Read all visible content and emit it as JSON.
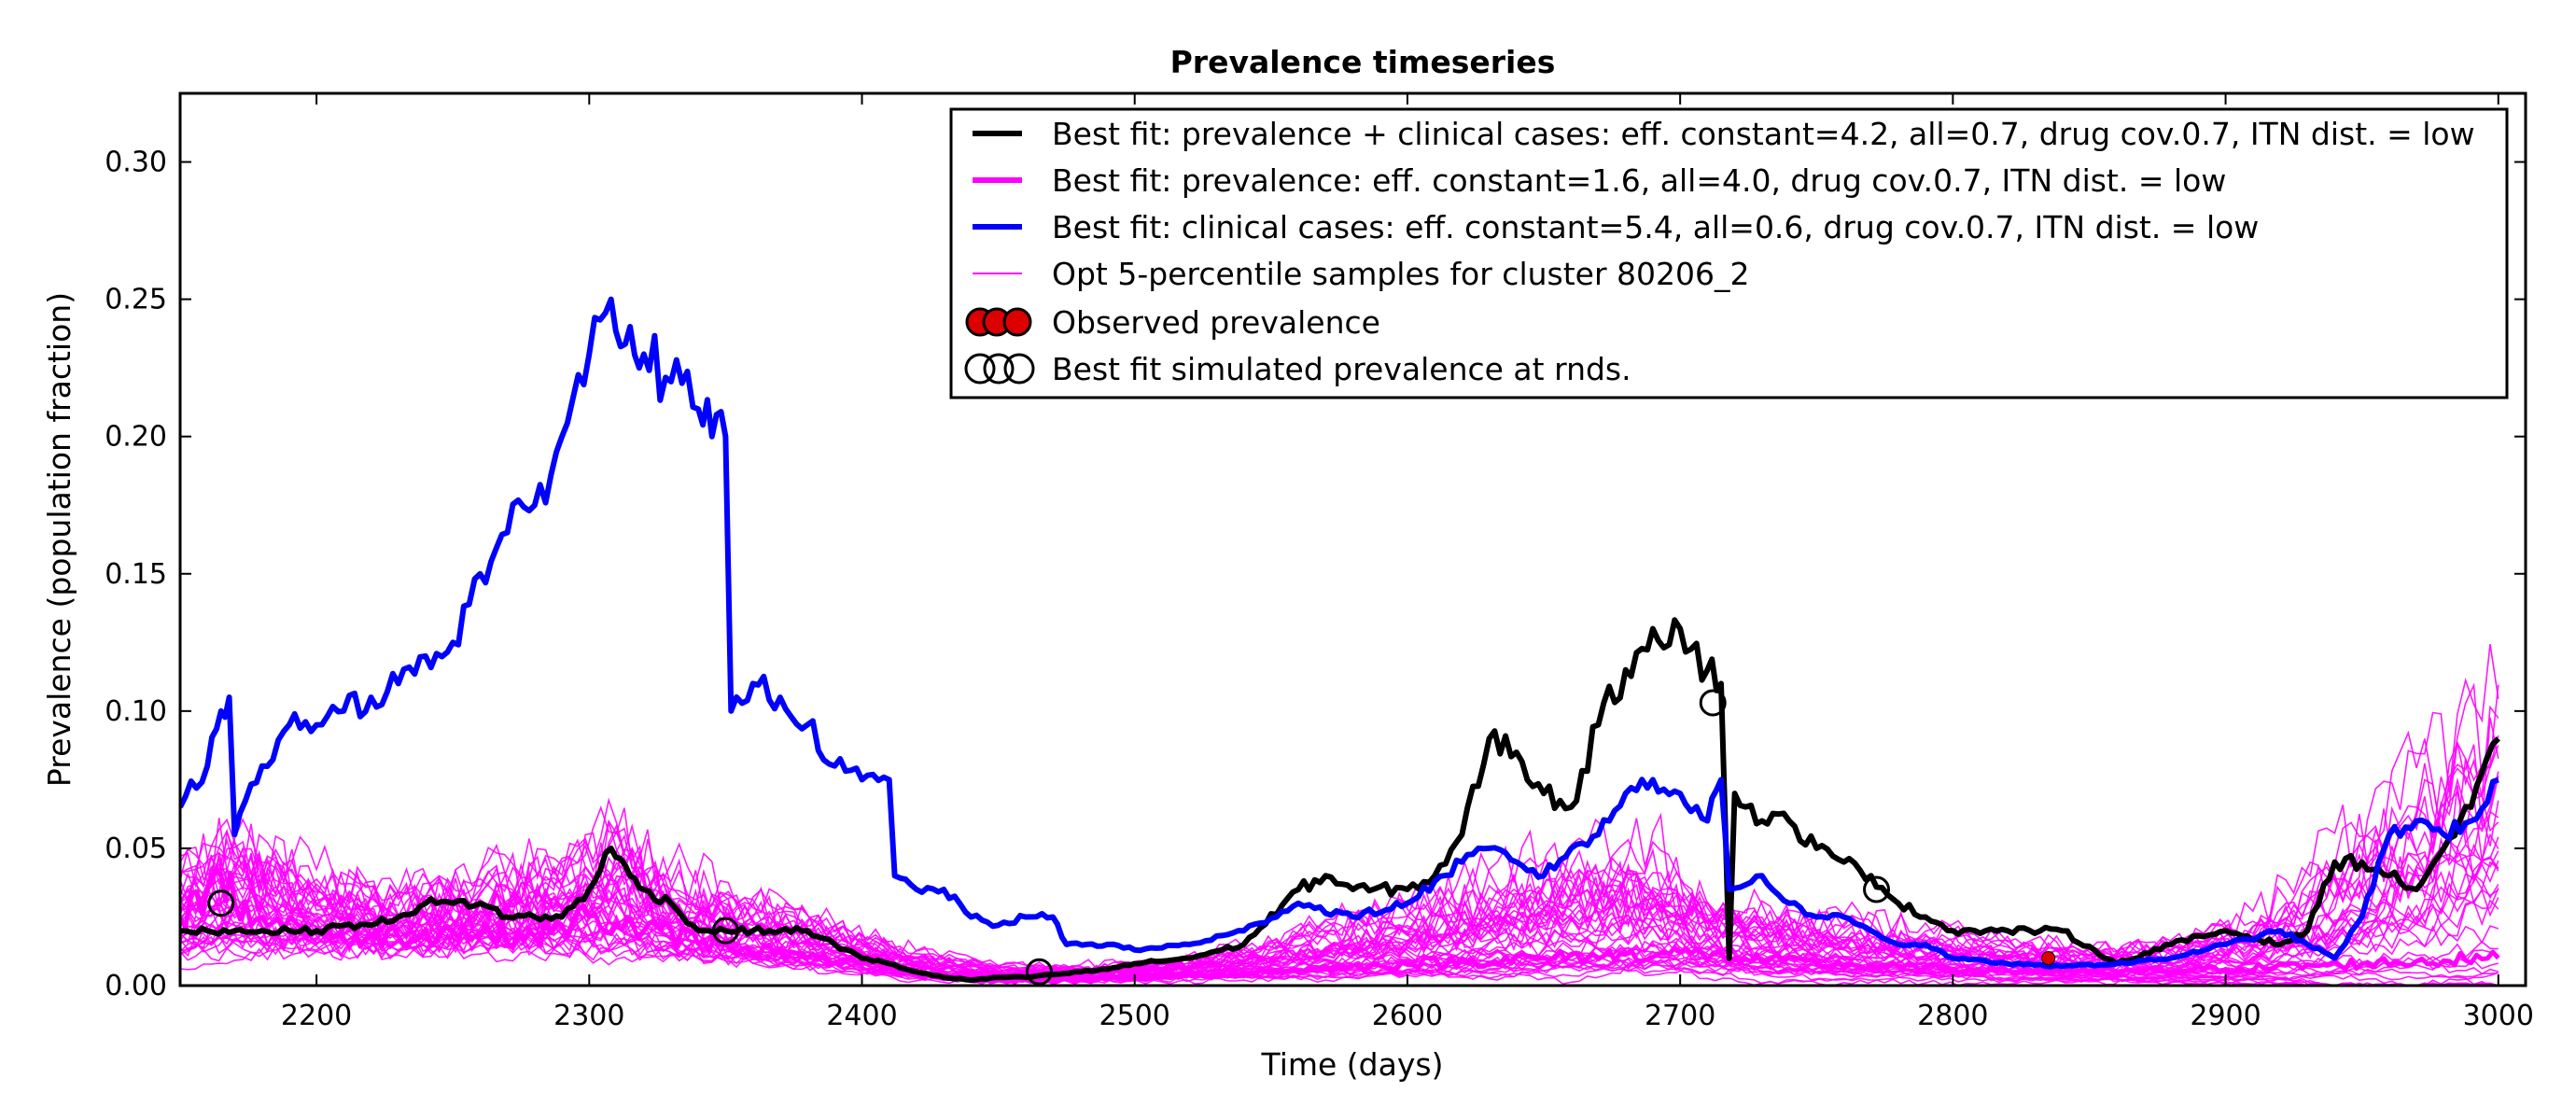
{
  "chart_data": {
    "type": "line",
    "title": "Prevalence timeseries",
    "xlabel": "Time (days)",
    "ylabel": "Prevalence (population fraction)",
    "xlim": [
      2150,
      3010
    ],
    "ylim": [
      0.0,
      0.325
    ],
    "xticks": [
      2200,
      2300,
      2400,
      2500,
      2600,
      2700,
      2800,
      2900,
      3000
    ],
    "xtick_labels": [
      "2200",
      "2300",
      "2400",
      "2500",
      "2600",
      "2700",
      "2800",
      "2900",
      "3000"
    ],
    "yticks": [
      0.0,
      0.05,
      0.1,
      0.15,
      0.2,
      0.25,
      0.3
    ],
    "ytick_labels": [
      "0.00",
      "0.05",
      "0.10",
      "0.15",
      "0.20",
      "0.25",
      "0.30"
    ],
    "grid": false,
    "legend_position": "top-right",
    "colors": {
      "best_fit_combined": "#000000",
      "best_fit_prevalence": "#ff00ff",
      "best_fit_clinical": "#0000ff",
      "samples": "#ff00ff",
      "observed_fill": "#dd0000",
      "observed_edge": "#000000"
    },
    "legend": [
      {
        "label": "Best fit: prevalence + clinical cases: eff. constant=4.2, all=0.7, drug cov.0.7, ITN dist. = low",
        "marker": "line",
        "color": "#000000"
      },
      {
        "label": "Best fit: prevalence: eff. constant=1.6, all=4.0, drug cov.0.7, ITN dist. = low",
        "marker": "line",
        "color": "#ff00ff"
      },
      {
        "label": "Best fit: clinical cases: eff. constant=5.4, all=0.6, drug cov.0.7, ITN dist. = low",
        "marker": "line",
        "color": "#0000ff"
      },
      {
        "label": "Opt 5-percentile samples for cluster 80206_2",
        "marker": "thinline",
        "color": "#ff00ff"
      },
      {
        "label": "Observed prevalence",
        "marker": "filled-circles",
        "color": "#dd0000"
      },
      {
        "label": "Best fit simulated prevalence at rnds.",
        "marker": "open-circles",
        "color": "#000000"
      }
    ],
    "series": [
      {
        "name": "Best fit: clinical cases: eff. constant=5.4, all=0.6, drug cov.0.7, ITN dist. = low",
        "style": "thick",
        "x": [
          2150,
          2160,
          2165,
          2168,
          2170,
          2180,
          2190,
          2200,
          2210,
          2220,
          2230,
          2240,
          2250,
          2260,
          2270,
          2280,
          2290,
          2300,
          2308,
          2315,
          2320,
          2330,
          2340,
          2345,
          2350,
          2352,
          2360,
          2370,
          2380,
          2390,
          2400,
          2410,
          2412,
          2420,
          2430,
          2440,
          2450,
          2460,
          2470,
          2475,
          2490,
          2500,
          2520,
          2540,
          2560,
          2580,
          2600,
          2620,
          2630,
          2640,
          2650,
          2660,
          2670,
          2680,
          2690,
          2700,
          2710,
          2715,
          2718,
          2730,
          2740,
          2750,
          2760,
          2770,
          2780,
          2790,
          2800,
          2820,
          2840,
          2860,
          2880,
          2900,
          2920,
          2930,
          2940,
          2950,
          2960,
          2970,
          2980,
          2990,
          3000
        ],
        "y": [
          0.065,
          0.08,
          0.1,
          0.105,
          0.055,
          0.08,
          0.095,
          0.095,
          0.1,
          0.105,
          0.11,
          0.12,
          0.125,
          0.15,
          0.165,
          0.175,
          0.2,
          0.23,
          0.25,
          0.24,
          0.23,
          0.22,
          0.21,
          0.2,
          0.2,
          0.1,
          0.11,
          0.105,
          0.095,
          0.08,
          0.075,
          0.075,
          0.04,
          0.035,
          0.035,
          0.025,
          0.022,
          0.025,
          0.025,
          0.015,
          0.015,
          0.013,
          0.015,
          0.02,
          0.03,
          0.025,
          0.03,
          0.045,
          0.05,
          0.045,
          0.04,
          0.05,
          0.055,
          0.07,
          0.075,
          0.07,
          0.06,
          0.075,
          0.035,
          0.04,
          0.03,
          0.025,
          0.025,
          0.02,
          0.015,
          0.015,
          0.01,
          0.008,
          0.007,
          0.008,
          0.01,
          0.015,
          0.02,
          0.015,
          0.01,
          0.025,
          0.055,
          0.06,
          0.055,
          0.06,
          0.075
        ]
      },
      {
        "name": "Best fit: prevalence + clinical cases: eff. constant=4.2, all=0.7, drug cov.0.7, ITN dist. = low",
        "style": "thick",
        "x": [
          2150,
          2160,
          2170,
          2180,
          2190,
          2200,
          2210,
          2220,
          2230,
          2240,
          2250,
          2260,
          2270,
          2280,
          2290,
          2300,
          2308,
          2315,
          2320,
          2330,
          2340,
          2350,
          2360,
          2370,
          2380,
          2390,
          2400,
          2410,
          2420,
          2430,
          2440,
          2450,
          2460,
          2470,
          2480,
          2490,
          2500,
          2520,
          2540,
          2560,
          2570,
          2580,
          2600,
          2610,
          2620,
          2630,
          2640,
          2650,
          2660,
          2670,
          2680,
          2690,
          2700,
          2710,
          2715,
          2718,
          2720,
          2730,
          2740,
          2750,
          2760,
          2770,
          2780,
          2790,
          2800,
          2820,
          2840,
          2860,
          2880,
          2900,
          2920,
          2930,
          2940,
          2950,
          2960,
          2970,
          2980,
          2990,
          3000
        ],
        "y": [
          0.02,
          0.02,
          0.02,
          0.02,
          0.02,
          0.02,
          0.022,
          0.022,
          0.025,
          0.03,
          0.03,
          0.03,
          0.025,
          0.025,
          0.025,
          0.035,
          0.05,
          0.04,
          0.035,
          0.03,
          0.02,
          0.02,
          0.02,
          0.02,
          0.02,
          0.015,
          0.01,
          0.008,
          0.005,
          0.003,
          0.002,
          0.003,
          0.003,
          0.004,
          0.005,
          0.006,
          0.008,
          0.01,
          0.015,
          0.035,
          0.04,
          0.035,
          0.035,
          0.04,
          0.055,
          0.09,
          0.085,
          0.07,
          0.065,
          0.095,
          0.115,
          0.13,
          0.13,
          0.115,
          0.11,
          0.01,
          0.07,
          0.06,
          0.06,
          0.05,
          0.045,
          0.04,
          0.03,
          0.025,
          0.02,
          0.02,
          0.02,
          0.008,
          0.015,
          0.02,
          0.015,
          0.02,
          0.045,
          0.045,
          0.04,
          0.035,
          0.05,
          0.065,
          0.09
        ]
      },
      {
        "name": "Best fit: prevalence: eff. constant=1.6, all=4.0, drug cov.0.7, ITN dist. = low",
        "style": "thick",
        "x": [
          2150,
          2160,
          2165,
          2170,
          2180,
          2200,
          2220,
          2250,
          2280,
          2300,
          2320,
          2350,
          2380,
          2400,
          2420,
          2450,
          2480,
          2500,
          2550,
          2600,
          2650,
          2700,
          2720,
          2750,
          2800,
          2850,
          2900,
          2950,
          3000
        ],
        "y": [
          0.025,
          0.035,
          0.04,
          0.03,
          0.025,
          0.02,
          0.018,
          0.02,
          0.018,
          0.025,
          0.02,
          0.015,
          0.01,
          0.008,
          0.004,
          0.002,
          0.002,
          0.003,
          0.005,
          0.008,
          0.01,
          0.012,
          0.01,
          0.008,
          0.006,
          0.005,
          0.006,
          0.008,
          0.01
        ]
      }
    ],
    "sample_band": {
      "name": "Opt 5-percentile samples for cluster 80206_2",
      "count": 40,
      "x": [
        2150,
        2170,
        2200,
        2230,
        2260,
        2290,
        2310,
        2330,
        2360,
        2390,
        2420,
        2450,
        2480,
        2510,
        2540,
        2570,
        2600,
        2630,
        2660,
        2690,
        2710,
        2730,
        2760,
        2790,
        2820,
        2850,
        2880,
        2910,
        2940,
        2970,
        3000
      ],
      "center": [
        0.02,
        0.025,
        0.02,
        0.018,
        0.02,
        0.022,
        0.025,
        0.018,
        0.014,
        0.01,
        0.005,
        0.003,
        0.003,
        0.004,
        0.006,
        0.008,
        0.01,
        0.012,
        0.014,
        0.016,
        0.012,
        0.01,
        0.008,
        0.007,
        0.006,
        0.005,
        0.005,
        0.006,
        0.008,
        0.01,
        0.012
      ],
      "spread": [
        0.02,
        0.025,
        0.015,
        0.012,
        0.014,
        0.018,
        0.025,
        0.016,
        0.012,
        0.01,
        0.005,
        0.003,
        0.003,
        0.004,
        0.006,
        0.01,
        0.015,
        0.02,
        0.025,
        0.025,
        0.015,
        0.014,
        0.012,
        0.01,
        0.008,
        0.006,
        0.008,
        0.015,
        0.03,
        0.05,
        0.08
      ]
    },
    "observed_prevalence": {
      "x": [
        2835
      ],
      "y": [
        0.01
      ]
    },
    "simulated_at_rounds": {
      "x": [
        2165,
        2350,
        2465,
        2712,
        2772
      ],
      "y": [
        0.03,
        0.02,
        0.005,
        0.103,
        0.035
      ]
    }
  }
}
